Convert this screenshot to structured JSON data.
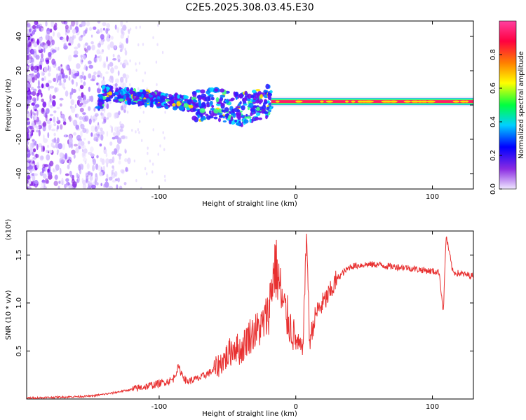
{
  "title": "C2E5.2025.308.03.45.E30",
  "chart_data": [
    {
      "type": "heatmap",
      "title": "C2E5.2025.308.03.45.E30",
      "xlabel": "Height of straight line (km)",
      "ylabel": "Frequency (Hz)",
      "xlim": [
        -197,
        130
      ],
      "ylim": [
        -49,
        49
      ],
      "xticks": [
        -100,
        0,
        100
      ],
      "yticks": [
        -40,
        -20,
        0,
        20,
        40
      ],
      "colorbar": {
        "label": "Normalized spectral amplitude",
        "range": [
          0,
          1
        ],
        "ticks": [
          "0.0",
          "0.2",
          "0.4",
          "0.6",
          "0.8"
        ],
        "tick_values": [
          0.0,
          0.2,
          0.4,
          0.6,
          0.8
        ],
        "colors": [
          "#f0e8ff",
          "#8a2be2",
          "#0000ff",
          "#00d0ff",
          "#00ff40",
          "#ffff00",
          "#ff8000",
          "#ff0040",
          "#ff40a0"
        ]
      },
      "ridge": [
        {
          "x": -141,
          "y": 7
        },
        {
          "x": -130,
          "y": 6
        },
        {
          "x": -120,
          "y": 5
        },
        {
          "x": -110,
          "y": 4
        },
        {
          "x": -100,
          "y": 3
        },
        {
          "x": -90,
          "y": 2
        },
        {
          "x": -80,
          "y": 1
        },
        {
          "x": -70,
          "y": 0
        },
        {
          "x": -60,
          "y": 1
        },
        {
          "x": -50,
          "y": -1
        },
        {
          "x": -40,
          "y": -3
        },
        {
          "x": -30,
          "y": 0
        },
        {
          "x": -20,
          "y": 2
        },
        {
          "x": -10,
          "y": 2
        },
        {
          "x": 0,
          "y": 2
        },
        {
          "x": 25,
          "y": 2
        },
        {
          "x": 50,
          "y": 2
        },
        {
          "x": 75,
          "y": 2
        },
        {
          "x": 100,
          "y": 2
        },
        {
          "x": 130,
          "y": 2
        }
      ]
    },
    {
      "type": "line",
      "xlabel": "Height of straight line (km)",
      "ylabel": "SNR (10 * v/v)",
      "yscale_label": "(x10⁴)",
      "xlim": [
        -197,
        130
      ],
      "ylim": [
        0,
        1.75
      ],
      "xticks": [
        -100,
        0,
        100
      ],
      "yticks": [
        0.5,
        1.0,
        1.5
      ],
      "ytick_labels": [
        "0.5",
        "1.0",
        "1.5"
      ],
      "color": "#e83030",
      "series": [
        {
          "name": "SNR",
          "points": [
            [
              -197,
              0.01
            ],
            [
              -170,
              0.02
            ],
            [
              -150,
              0.03
            ],
            [
              -135,
              0.06
            ],
            [
              -120,
              0.1
            ],
            [
              -110,
              0.13
            ],
            [
              -100,
              0.16
            ],
            [
              -90,
              0.2
            ],
            [
              -86,
              0.33
            ],
            [
              -80,
              0.18
            ],
            [
              -70,
              0.22
            ],
            [
              -60,
              0.3
            ],
            [
              -50,
              0.45
            ],
            [
              -45,
              0.55
            ],
            [
              -40,
              0.5
            ],
            [
              -35,
              0.65
            ],
            [
              -30,
              0.7
            ],
            [
              -25,
              0.75
            ],
            [
              -20,
              0.9
            ],
            [
              -17,
              1.25
            ],
            [
              -15,
              1.4
            ],
            [
              -12,
              1.2
            ],
            [
              -10,
              1.0
            ],
            [
              -5,
              0.8
            ],
            [
              0,
              0.6
            ],
            [
              5,
              0.5
            ],
            [
              8,
              1.75
            ],
            [
              10,
              0.6
            ],
            [
              15,
              0.9
            ],
            [
              20,
              1.0
            ],
            [
              25,
              1.1
            ],
            [
              30,
              1.25
            ],
            [
              35,
              1.32
            ],
            [
              40,
              1.38
            ],
            [
              50,
              1.4
            ],
            [
              60,
              1.4
            ],
            [
              70,
              1.38
            ],
            [
              80,
              1.37
            ],
            [
              90,
              1.35
            ],
            [
              100,
              1.33
            ],
            [
              105,
              1.32
            ],
            [
              108,
              0.9
            ],
            [
              110,
              1.7
            ],
            [
              115,
              1.32
            ],
            [
              130,
              1.28
            ]
          ]
        }
      ]
    }
  ]
}
